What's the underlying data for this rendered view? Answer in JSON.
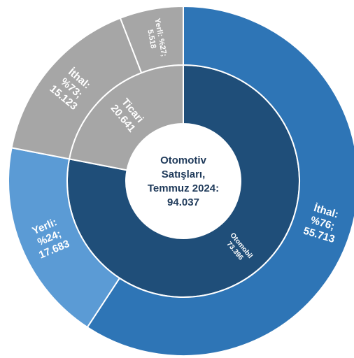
{
  "chart_data": {
    "type": "sunburst",
    "center_label": [
      "Otomotiv",
      "Satışları,",
      "Temmuz 2024:",
      "94.037"
    ],
    "inner": [
      {
        "name": "Otomobil",
        "value": 73396,
        "label": [
          "Otomobil",
          "73.396"
        ],
        "color": "#1f4e79"
      },
      {
        "name": "Ticari",
        "value": 20641,
        "label": [
          "Ticari",
          "20.641"
        ],
        "color": "#a6a6a6"
      }
    ],
    "outer": [
      {
        "parent": "Otomobil",
        "name": "İthal",
        "value": 55713,
        "label": [
          "İthal:",
          "%76;",
          "55.713"
        ],
        "color": "#2e75b6"
      },
      {
        "parent": "Otomobil",
        "name": "Yerli",
        "value": 17683,
        "label": [
          "Yerli:",
          "%24;",
          "17.683"
        ],
        "color": "#5b9bd5"
      },
      {
        "parent": "Ticari",
        "name": "İthal",
        "value": 15123,
        "label": [
          "İthal:",
          "%73;",
          "15.123"
        ],
        "color": "#a6a6a6"
      },
      {
        "parent": "Ticari",
        "name": "Yerli",
        "value": 5518,
        "label": [
          "Yerli: %27;",
          "5.518"
        ],
        "color": "#a6a6a6"
      }
    ]
  }
}
